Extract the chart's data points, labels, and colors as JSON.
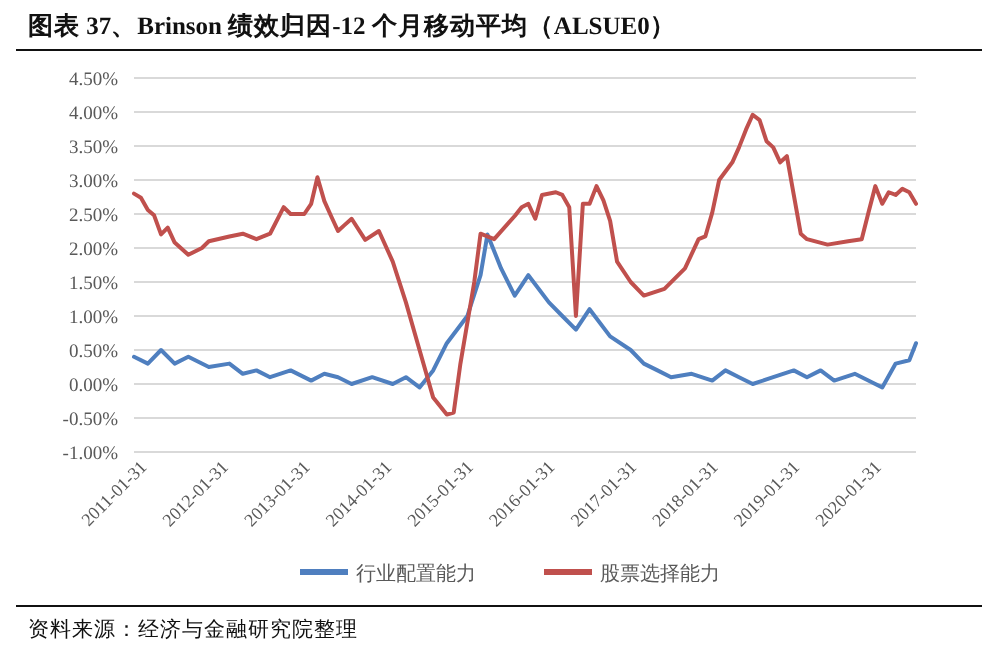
{
  "chart_data": {
    "type": "line",
    "title": "图表 37、Brinson 绩效归因-12 个月移动平均（ALSUE0）",
    "annotations": [
      "资料来源：经济与金融研究院整理"
    ],
    "xlim": [
      "2010-12",
      "2020-07"
    ],
    "xticks": [
      {
        "value": "2011-01-31",
        "label": "2011-01-31"
      },
      {
        "value": "2012-01-31",
        "label": "2012-01-31"
      },
      {
        "value": "2013-01-31",
        "label": "2013-01-31"
      },
      {
        "value": "2014-01-31",
        "label": "2014-01-31"
      },
      {
        "value": "2015-01-31",
        "label": "2015-01-31"
      },
      {
        "value": "2016-01-31",
        "label": "2016-01-31"
      },
      {
        "value": "2017-01-31",
        "label": "2017-01-31"
      },
      {
        "value": "2018-01-31",
        "label": "2018-01-31"
      },
      {
        "value": "2019-01-31",
        "label": "2019-01-31"
      },
      {
        "value": "2020-01-31",
        "label": "2020-01-31"
      }
    ],
    "ylim": [
      -1,
      4.5
    ],
    "yticks": [
      {
        "value": -1,
        "label": "-1.00%"
      },
      {
        "value": -0.5,
        "label": "-0.50%"
      },
      {
        "value": 0,
        "label": "0.00%"
      },
      {
        "value": 0.5,
        "label": "0.50%"
      },
      {
        "value": 1,
        "label": "1.00%"
      },
      {
        "value": 1.5,
        "label": "1.50%"
      },
      {
        "value": 2,
        "label": "2.00%"
      },
      {
        "value": 2.5,
        "label": "2.50%"
      },
      {
        "value": 3,
        "label": "3.00%"
      },
      {
        "value": 3.5,
        "label": "3.50%"
      },
      {
        "value": 4,
        "label": "4.00%"
      },
      {
        "value": 4.5,
        "label": "4.50%"
      }
    ],
    "grid": "y",
    "legend": "bottom",
    "marker": "none",
    "line_style": "solid",
    "series": [
      {
        "name": "行业配置能力",
        "color": "#4f7fbf",
        "x": [
          "2010-12",
          "2011-02",
          "2011-04",
          "2011-06",
          "2011-08",
          "2011-11",
          "2012-02",
          "2012-04",
          "2012-06",
          "2012-08",
          "2012-11",
          "2013-02",
          "2013-04",
          "2013-06",
          "2013-08",
          "2013-11",
          "2014-02",
          "2014-04",
          "2014-06",
          "2014-08",
          "2014-10",
          "2015-01",
          "2015-03",
          "2015-04",
          "2015-06",
          "2015-08",
          "2015-10",
          "2016-01",
          "2016-03",
          "2016-05",
          "2016-07",
          "2016-10",
          "2017-01",
          "2017-03",
          "2017-05",
          "2017-07",
          "2017-10",
          "2018-01",
          "2018-03",
          "2018-05",
          "2018-07",
          "2018-10",
          "2019-01",
          "2019-03",
          "2019-05",
          "2019-07",
          "2019-10",
          "2020-01",
          "2020-02",
          "2020-04",
          "2020-06",
          "2020-07"
        ],
        "values": [
          0.4,
          0.3,
          0.5,
          0.3,
          0.4,
          0.25,
          0.3,
          0.15,
          0.2,
          0.1,
          0.2,
          0.05,
          0.15,
          0.1,
          0.0,
          0.1,
          0.0,
          0.1,
          -0.05,
          0.2,
          0.6,
          1.0,
          1.6,
          2.2,
          1.7,
          1.3,
          1.6,
          1.2,
          1.0,
          0.8,
          1.1,
          0.7,
          0.5,
          0.3,
          0.2,
          0.1,
          0.15,
          0.05,
          0.2,
          0.1,
          0.0,
          0.1,
          0.2,
          0.1,
          0.2,
          0.05,
          0.15,
          0.0,
          -0.05,
          0.3,
          0.35,
          0.6
        ]
      },
      {
        "name": "股票选择能力",
        "color": "#c0504d",
        "x": [
          "2010-12",
          "2011-01",
          "2011-02",
          "2011-03",
          "2011-04",
          "2011-05",
          "2011-06",
          "2011-08",
          "2011-10",
          "2011-11",
          "2012-02",
          "2012-04",
          "2012-06",
          "2012-08",
          "2012-10",
          "2012-11",
          "2013-01",
          "2013-02",
          "2013-03",
          "2013-04",
          "2013-05",
          "2013-06",
          "2013-07",
          "2013-08",
          "2013-10",
          "2013-12",
          "2014-02",
          "2014-04",
          "2014-06",
          "2014-08",
          "2014-10",
          "2014-11",
          "2014-12",
          "2015-02",
          "2015-03",
          "2015-05",
          "2015-08",
          "2015-09",
          "2015-10",
          "2015-11",
          "2015-12",
          "2016-02",
          "2016-03",
          "2016-04",
          "2016-05",
          "2016-06",
          "2016-07",
          "2016-08",
          "2016-09",
          "2016-10",
          "2016-11",
          "2017-01",
          "2017-03",
          "2017-06",
          "2017-09",
          "2017-11",
          "2017-12",
          "2018-01",
          "2018-02",
          "2018-04",
          "2018-05",
          "2018-06",
          "2018-07",
          "2018-08",
          "2018-09",
          "2018-10",
          "2018-11",
          "2018-12",
          "2019-01",
          "2019-02",
          "2019-03",
          "2019-06",
          "2019-09",
          "2019-11",
          "2019-12",
          "2020-01",
          "2020-02",
          "2020-03",
          "2020-04",
          "2020-05",
          "2020-06",
          "2020-07"
        ],
        "values": [
          2.8,
          2.74,
          2.56,
          2.48,
          2.2,
          2.3,
          2.08,
          1.9,
          2.0,
          2.1,
          2.17,
          2.21,
          2.13,
          2.21,
          2.6,
          2.5,
          2.5,
          2.65,
          3.04,
          2.69,
          2.47,
          2.25,
          2.34,
          2.43,
          2.12,
          2.25,
          1.8,
          1.2,
          0.5,
          -0.2,
          -0.45,
          -0.42,
          0.3,
          1.5,
          2.21,
          2.13,
          2.47,
          2.6,
          2.65,
          2.43,
          2.78,
          2.82,
          2.78,
          2.6,
          1.0,
          2.65,
          2.65,
          2.91,
          2.7,
          2.4,
          1.8,
          1.5,
          1.3,
          1.4,
          1.7,
          2.13,
          2.17,
          2.52,
          3.0,
          3.26,
          3.48,
          3.74,
          3.96,
          3.88,
          3.57,
          3.48,
          3.26,
          3.35,
          2.78,
          2.21,
          2.13,
          2.05,
          2.1,
          2.13,
          2.52,
          2.91,
          2.65,
          2.82,
          2.78,
          2.87,
          2.82,
          2.65
        ]
      }
    ]
  }
}
